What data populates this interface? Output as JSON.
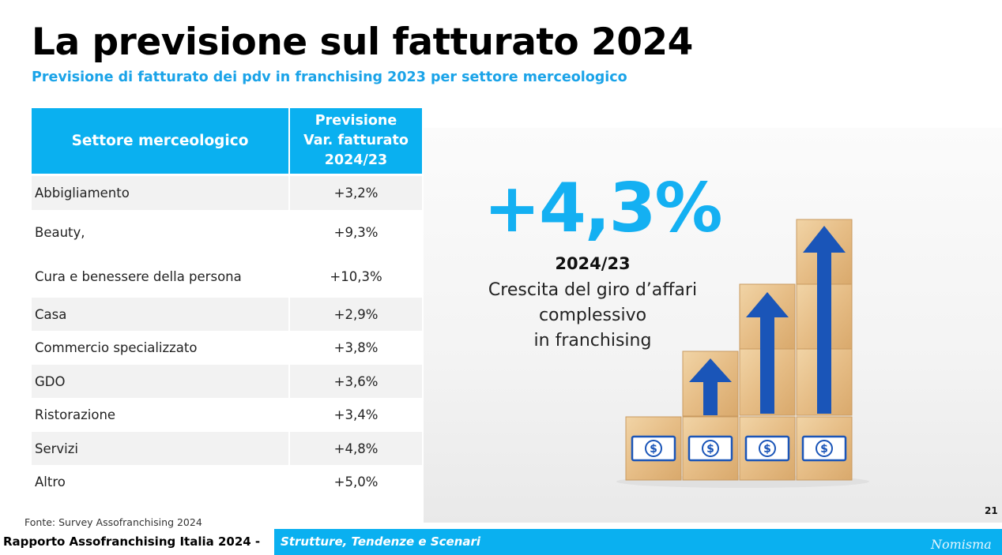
{
  "title": "La previsione sul fatturato 2024",
  "subtitle": "Previsione di fatturato dei pdv in franchising 2023 per settore merceologico",
  "table": {
    "header": {
      "col1": "Settore merceologico",
      "col2_lines": [
        "Previsione",
        "Var. fatturato",
        "2024/23"
      ]
    },
    "rows": [
      {
        "sector": "Abbigliamento",
        "value": "+3,2%"
      },
      {
        "sector": "Beauty,",
        "value": "+9,3%"
      },
      {
        "sector": "Cura e benessere della persona",
        "value": "+10,3%"
      },
      {
        "sector": "Casa",
        "value": "+2,9%"
      },
      {
        "sector": "Commercio specializzato",
        "value": "+3,8%"
      },
      {
        "sector": "GDO",
        "value": "+3,6%"
      },
      {
        "sector": "Ristorazione",
        "value": "+3,4%"
      },
      {
        "sector": "Servizi",
        "value": "+4,8%"
      },
      {
        "sector": "Altro",
        "value": "+5,0%"
      }
    ]
  },
  "highlight": {
    "value": "+4,3%",
    "period": "2024/23",
    "desc_lines": [
      "Crescita del giro d’affari",
      "complessivo",
      "in franchising"
    ]
  },
  "illustration": {
    "icon": "growth-cubes-icon",
    "symbol": "$"
  },
  "page_number": "21",
  "source": "Fonte:  Survey Assofranchising 2024",
  "footer": {
    "left": "Rapporto Assofranchising Italia 2024 -",
    "right": "Strutture, Tendenze e Scenari",
    "logo": "Nomisma"
  },
  "colors": {
    "accent": "#0ab0f0",
    "highlight": "#14b0f2",
    "row_shade": "#f2f2f2",
    "arrow": "#1a55b8",
    "wood": "#e8c38f"
  }
}
